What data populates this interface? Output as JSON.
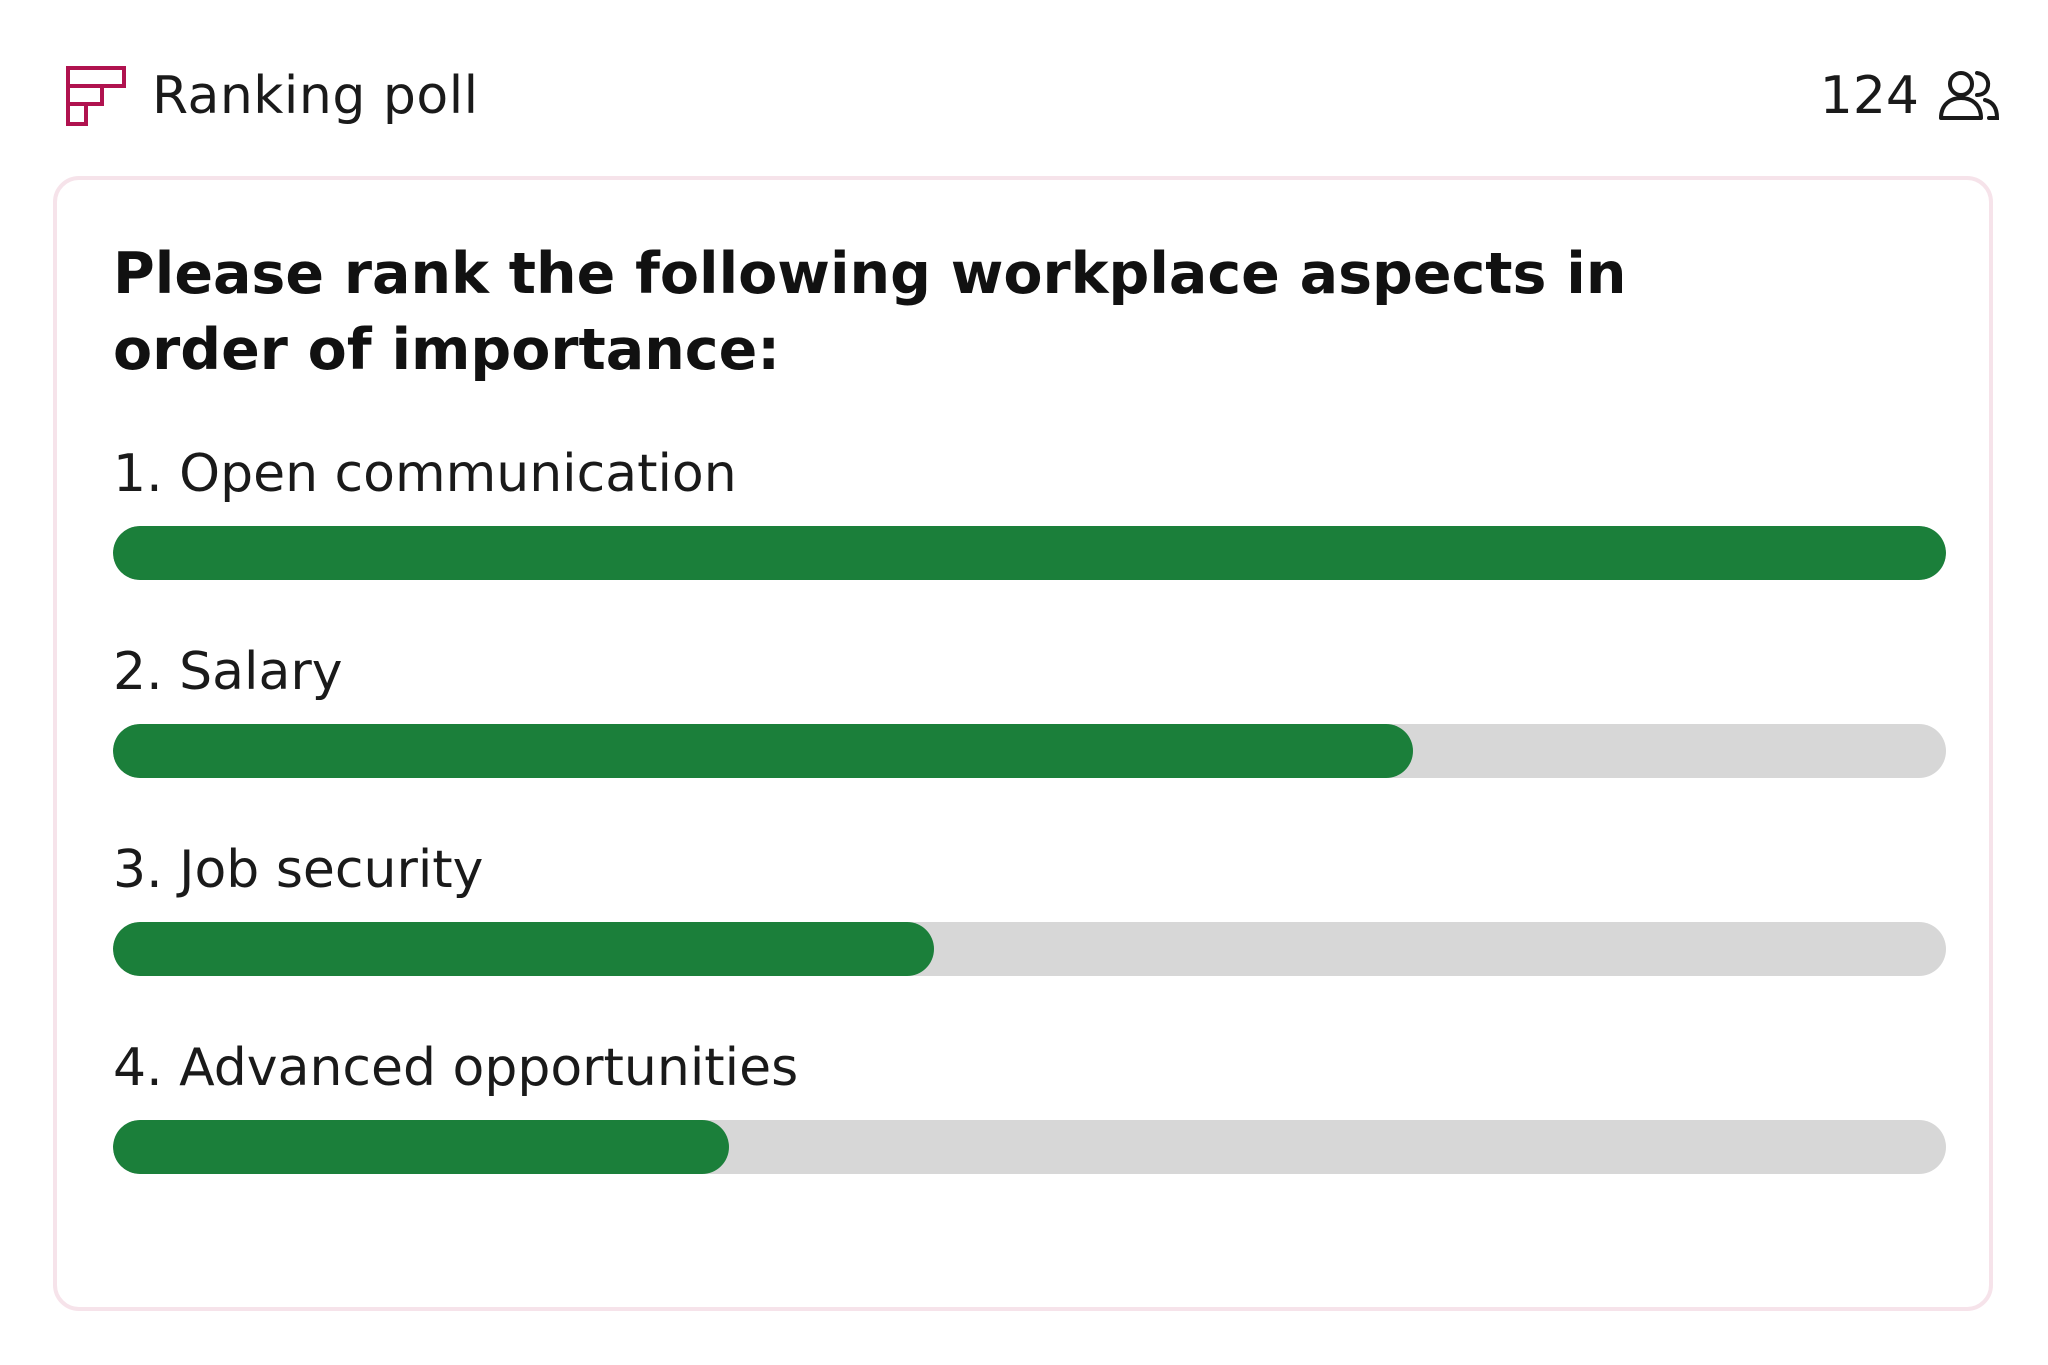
{
  "header": {
    "poll_type_label": "Ranking poll",
    "participant_count": "124",
    "poll_icon": "ranking-poll-icon",
    "users_icon": "users-icon"
  },
  "card": {
    "question": "Please rank the following workplace aspects in order of importance:"
  },
  "options": [
    {
      "label": "1. Open communication",
      "score_fraction": 1.0
    },
    {
      "label": "2. Salary",
      "score_fraction": 0.709
    },
    {
      "label": "3. Job security",
      "score_fraction": 0.448
    },
    {
      "label": "4. Advanced opportunities",
      "score_fraction": 0.336
    }
  ],
  "colors": {
    "bar_fill": "#1b7f3a",
    "bar_track": "#d7d7d7",
    "card_border": "#f6e3ea",
    "poll_icon_accent": "#b0124f"
  }
}
